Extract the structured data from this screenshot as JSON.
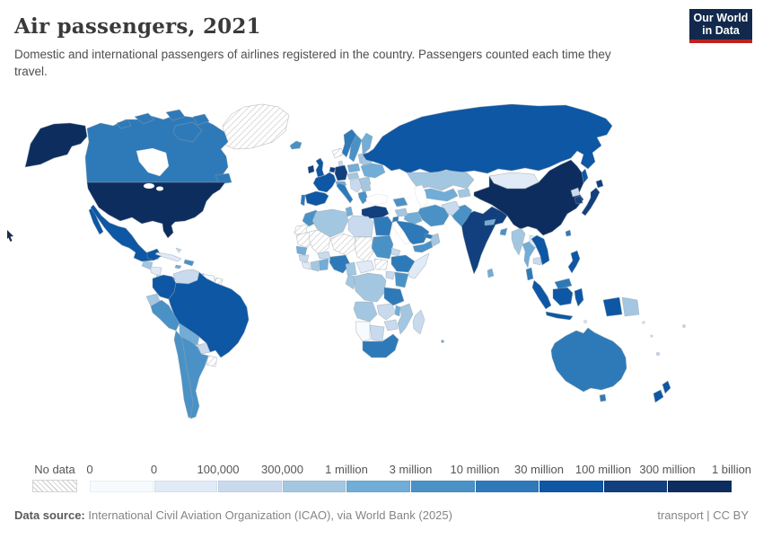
{
  "header": {
    "title": "Air passengers, 2021",
    "subtitle": "Domestic and international passengers of airlines registered in the country. Passengers counted each time they travel.",
    "logo_line1": "Our World",
    "logo_line2": "in Data"
  },
  "footer": {
    "source_label": "Data source:",
    "source_text": " International Civil Aviation Organization (ICAO), via World Bank (2025)",
    "right_text": "transport | CC BY"
  },
  "colors": {
    "logo_bg": "#12294d",
    "logo_red": "#bc2320",
    "ocean": "#ffffff"
  },
  "chart_data": {
    "type": "choropleth-map",
    "title": "Air passengers, 2021",
    "metric": "air passengers carried",
    "year": 2021,
    "legend": {
      "no_data_label": "No data",
      "tick_labels": [
        "0",
        "0",
        "100,000",
        "300,000",
        "1 million",
        "3 million",
        "10 million",
        "30 million",
        "100 million",
        "300 million",
        "1 billion"
      ],
      "bin_colors": [
        "#f7fbff",
        "#e1ebf7",
        "#c9daee",
        "#a3c7e1",
        "#71add6",
        "#4a92c6",
        "#2e7ab9",
        "#0d57a4",
        "#123f7d",
        "#0d2d5e"
      ]
    },
    "countries": [
      {
        "id": "greenland",
        "name": "Greenland",
        "bin": "no_data"
      },
      {
        "id": "canada",
        "name": "Canada",
        "bin": 6
      },
      {
        "id": "united-states",
        "name": "United States",
        "bin": 9
      },
      {
        "id": "mexico",
        "name": "Mexico",
        "bin": 7
      },
      {
        "id": "guatemala",
        "name": "Guatemala",
        "bin": 3
      },
      {
        "id": "honduras",
        "name": "Honduras / Nicaragua",
        "bin": 1
      },
      {
        "id": "costa-rica",
        "name": "Costa Rica",
        "bin": 2
      },
      {
        "id": "panama",
        "name": "Panama",
        "bin": 6
      },
      {
        "id": "cuba",
        "name": "Cuba",
        "bin": 1
      },
      {
        "id": "dominican-republic",
        "name": "Dominican Republic",
        "bin": 5
      },
      {
        "id": "jamaica",
        "name": "Jamaica",
        "bin": 4
      },
      {
        "id": "bahamas",
        "name": "Bahamas",
        "bin": 2
      },
      {
        "id": "trinidad-and-tobago",
        "name": "Trinidad and Tobago",
        "bin": 3
      },
      {
        "id": "colombia",
        "name": "Colombia",
        "bin": 7
      },
      {
        "id": "venezuela",
        "name": "Venezuela",
        "bin": 2
      },
      {
        "id": "guyana",
        "name": "Guyana / Suriname",
        "bin": 0
      },
      {
        "id": "french-guiana",
        "name": "French Guiana",
        "bin": "no_data"
      },
      {
        "id": "ecuador",
        "name": "Ecuador",
        "bin": 3
      },
      {
        "id": "peru",
        "name": "Peru",
        "bin": 5
      },
      {
        "id": "brazil",
        "name": "Brazil",
        "bin": 7
      },
      {
        "id": "bolivia",
        "name": "Bolivia",
        "bin": 4
      },
      {
        "id": "paraguay",
        "name": "Paraguay",
        "bin": 2
      },
      {
        "id": "chile",
        "name": "Chile",
        "bin": 5
      },
      {
        "id": "argentina",
        "name": "Argentina",
        "bin": 5
      },
      {
        "id": "uruguay",
        "name": "Uruguay",
        "bin": "no_data"
      },
      {
        "id": "iceland",
        "name": "Iceland",
        "bin": 5
      },
      {
        "id": "svalbard",
        "name": "Svalbard",
        "bin": "no_data"
      },
      {
        "id": "ireland",
        "name": "Ireland",
        "bin": 8
      },
      {
        "id": "united-kingdom",
        "name": "United Kingdom",
        "bin": 7
      },
      {
        "id": "norway",
        "name": "Norway",
        "bin": 6
      },
      {
        "id": "sweden",
        "name": "Sweden",
        "bin": 5
      },
      {
        "id": "finland",
        "name": "Finland",
        "bin": 4
      },
      {
        "id": "denmark",
        "name": "Denmark",
        "bin": 2
      },
      {
        "id": "baltics",
        "name": "Baltic states",
        "bin": 3
      },
      {
        "id": "germany",
        "name": "Germany",
        "bin": 8
      },
      {
        "id": "netherlands",
        "name": "Netherlands / Belgium",
        "bin": 8
      },
      {
        "id": "france",
        "name": "France",
        "bin": 7
      },
      {
        "id": "spain",
        "name": "Spain",
        "bin": 7
      },
      {
        "id": "portugal",
        "name": "Portugal",
        "bin": 6
      },
      {
        "id": "italy",
        "name": "Italy",
        "bin": 6
      },
      {
        "id": "switzerland",
        "name": "Switzerland / Austria",
        "bin": 4
      },
      {
        "id": "czechia",
        "name": "Czechia / Slovakia",
        "bin": 3
      },
      {
        "id": "poland",
        "name": "Poland",
        "bin": 4
      },
      {
        "id": "balkans",
        "name": "Hungary / Balkans",
        "bin": 2
      },
      {
        "id": "romania",
        "name": "Romania",
        "bin": 3
      },
      {
        "id": "bulgaria",
        "name": "Bulgaria",
        "bin": 3
      },
      {
        "id": "greece",
        "name": "Greece",
        "bin": 5
      },
      {
        "id": "belarus",
        "name": "Belarus",
        "bin": 3
      },
      {
        "id": "ukraine",
        "name": "Ukraine",
        "bin": 4
      },
      {
        "id": "turkey",
        "name": "Turkey",
        "bin": 8
      },
      {
        "id": "russia",
        "name": "Russia",
        "bin": 7
      },
      {
        "id": "kazakhstan",
        "name": "Kazakhstan",
        "bin": 3
      },
      {
        "id": "uzbekistan",
        "name": "Uzbekistan / Turkmenistan",
        "bin": 4
      },
      {
        "id": "kyrgyzstan",
        "name": "Kyrgyzstan / Tajikistan",
        "bin": 3
      },
      {
        "id": "caucasus",
        "name": "Georgia / Azerbaijan",
        "bin": 5
      },
      {
        "id": "mongolia",
        "name": "Mongolia",
        "bin": 1
      },
      {
        "id": "china",
        "name": "China",
        "bin": 9
      },
      {
        "id": "north-korea",
        "name": "North Korea",
        "bin": 2
      },
      {
        "id": "south-korea",
        "name": "South Korea",
        "bin": 8
      },
      {
        "id": "japan",
        "name": "Japan",
        "bin": 8
      },
      {
        "id": "india",
        "name": "India",
        "bin": 8
      },
      {
        "id": "pakistan",
        "name": "Pakistan",
        "bin": 5
      },
      {
        "id": "afghanistan",
        "name": "Afghanistan",
        "bin": 2
      },
      {
        "id": "nepal",
        "name": "Nepal",
        "bin": 4
      },
      {
        "id": "bangladesh",
        "name": "Bangladesh",
        "bin": 5
      },
      {
        "id": "sri-lanka",
        "name": "Sri Lanka",
        "bin": 4
      },
      {
        "id": "iran",
        "name": "Iran",
        "bin": 5
      },
      {
        "id": "iraq",
        "name": "Iraq",
        "bin": 4
      },
      {
        "id": "syria",
        "name": "Syria",
        "bin": 3
      },
      {
        "id": "israel",
        "name": "Israel / Jordan",
        "bin": 6
      },
      {
        "id": "saudi-arabia",
        "name": "Saudi Arabia",
        "bin": 6
      },
      {
        "id": "yemen",
        "name": "Yemen",
        "bin": 5
      },
      {
        "id": "oman",
        "name": "Oman",
        "bin": 3
      },
      {
        "id": "uae",
        "name": "United Arab Emirates / Qatar",
        "bin": 6
      },
      {
        "id": "morocco",
        "name": "Morocco",
        "bin": 5
      },
      {
        "id": "western-sahara",
        "name": "Western Sahara",
        "bin": "no_data"
      },
      {
        "id": "algeria",
        "name": "Algeria",
        "bin": 3
      },
      {
        "id": "tunisia",
        "name": "Tunisia",
        "bin": 4
      },
      {
        "id": "libya",
        "name": "Libya",
        "bin": 2
      },
      {
        "id": "egypt",
        "name": "Egypt",
        "bin": 6
      },
      {
        "id": "mauritania",
        "name": "Mauritania",
        "bin": "no_data"
      },
      {
        "id": "mali",
        "name": "Mali",
        "bin": "no_data"
      },
      {
        "id": "niger",
        "name": "Niger",
        "bin": "no_data"
      },
      {
        "id": "chad",
        "name": "Chad",
        "bin": "no_data"
      },
      {
        "id": "sudan",
        "name": "Sudan",
        "bin": 5
      },
      {
        "id": "eritrea",
        "name": "Eritrea",
        "bin": 2
      },
      {
        "id": "senegal",
        "name": "Senegal",
        "bin": 4
      },
      {
        "id": "guinea",
        "name": "Guinea",
        "bin": 2
      },
      {
        "id": "liberia",
        "name": "Sierra Leone / Liberia",
        "bin": 1
      },
      {
        "id": "ivory-coast",
        "name": "Cote d'Ivoire",
        "bin": 3
      },
      {
        "id": "ghana",
        "name": "Ghana / Togo / Benin",
        "bin": 4
      },
      {
        "id": "burkina-faso",
        "name": "Burkina Faso",
        "bin": 2
      },
      {
        "id": "nigeria",
        "name": "Nigeria",
        "bin": 6
      },
      {
        "id": "cameroon",
        "name": "Cameroon",
        "bin": 3
      },
      {
        "id": "car",
        "name": "Central African Republic",
        "bin": 1
      },
      {
        "id": "south-sudan",
        "name": "South Sudan",
        "bin": "no_data"
      },
      {
        "id": "ethiopia",
        "name": "Ethiopia",
        "bin": 6
      },
      {
        "id": "somalia",
        "name": "Somalia",
        "bin": 1
      },
      {
        "id": "uganda",
        "name": "Uganda",
        "bin": 2
      },
      {
        "id": "kenya",
        "name": "Kenya",
        "bin": 5
      },
      {
        "id": "drc",
        "name": "Democratic Republic of Congo",
        "bin": 3
      },
      {
        "id": "congo",
        "name": "Congo / Gabon",
        "bin": 3
      },
      {
        "id": "tanzania",
        "name": "Tanzania",
        "bin": 6
      },
      {
        "id": "angola",
        "name": "Angola",
        "bin": 3
      },
      {
        "id": "zambia",
        "name": "Zambia",
        "bin": 2
      },
      {
        "id": "malawi",
        "name": "Malawi",
        "bin": 4
      },
      {
        "id": "mozambique",
        "name": "Mozambique",
        "bin": 3
      },
      {
        "id": "zimbabwe",
        "name": "Zimbabwe",
        "bin": 2
      },
      {
        "id": "namibia",
        "name": "Namibia",
        "bin": 0
      },
      {
        "id": "botswana",
        "name": "Botswana",
        "bin": 2
      },
      {
        "id": "south-africa",
        "name": "South Africa",
        "bin": 6
      },
      {
        "id": "madagascar",
        "name": "Madagascar",
        "bin": 2
      },
      {
        "id": "mauritius",
        "name": "Mauritius",
        "bin": 4
      },
      {
        "id": "myanmar",
        "name": "Myanmar",
        "bin": 3
      },
      {
        "id": "thailand",
        "name": "Thailand",
        "bin": 4
      },
      {
        "id": "laos",
        "name": "Laos",
        "bin": 1
      },
      {
        "id": "cambodia",
        "name": "Cambodia",
        "bin": 2
      },
      {
        "id": "vietnam",
        "name": "Vietnam",
        "bin": 7
      },
      {
        "id": "malaysia",
        "name": "Malaysia",
        "bin": 6
      },
      {
        "id": "indonesia",
        "name": "Indonesia",
        "bin": 7
      },
      {
        "id": "papua-new-guinea",
        "name": "Papua New Guinea",
        "bin": 3
      },
      {
        "id": "philippines",
        "name": "Philippines",
        "bin": 7
      },
      {
        "id": "taiwan",
        "name": "Taiwan",
        "bin": 6
      },
      {
        "id": "east-timor",
        "name": "Timor-Leste",
        "bin": 1
      },
      {
        "id": "australia",
        "name": "Australia",
        "bin": 6
      },
      {
        "id": "new-zealand",
        "name": "New Zealand",
        "bin": 7
      },
      {
        "id": "fiji",
        "name": "Fiji",
        "bin": 2
      },
      {
        "id": "new-caledonia",
        "name": "New Caledonia",
        "bin": 2
      },
      {
        "id": "solomon-islands",
        "name": "Solomon Islands",
        "bin": 1
      },
      {
        "id": "vanuatu",
        "name": "Vanuatu",
        "bin": 1
      }
    ]
  }
}
